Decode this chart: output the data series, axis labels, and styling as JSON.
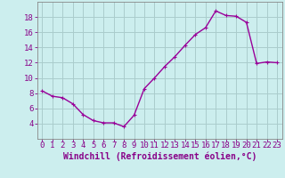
{
  "x": [
    0,
    1,
    2,
    3,
    4,
    5,
    6,
    7,
    8,
    9,
    10,
    11,
    12,
    13,
    14,
    15,
    16,
    17,
    18,
    19,
    20,
    21,
    22,
    23
  ],
  "y": [
    8.3,
    7.6,
    7.4,
    6.6,
    5.2,
    4.4,
    4.1,
    4.1,
    3.6,
    5.1,
    8.6,
    10.0,
    11.5,
    12.8,
    14.3,
    15.7,
    16.6,
    18.8,
    18.2,
    18.1,
    17.3,
    11.9,
    12.1,
    12.0
  ],
  "line_color": "#990099",
  "marker": "+",
  "marker_size": 3,
  "bg_color": "#cceeee",
  "grid_color": "#aacccc",
  "xlabel": "Windchill (Refroidissement éolien,°C)",
  "ylim": [
    2,
    20
  ],
  "xlim": [
    -0.5,
    23.5
  ],
  "yticks": [
    4,
    6,
    8,
    10,
    12,
    14,
    16,
    18
  ],
  "xticks": [
    0,
    1,
    2,
    3,
    4,
    5,
    6,
    7,
    8,
    9,
    10,
    11,
    12,
    13,
    14,
    15,
    16,
    17,
    18,
    19,
    20,
    21,
    22,
    23
  ],
  "xlabel_fontsize": 7,
  "tick_fontsize": 6.5,
  "label_color": "#880088",
  "spine_color": "#888888",
  "linewidth": 1.0
}
